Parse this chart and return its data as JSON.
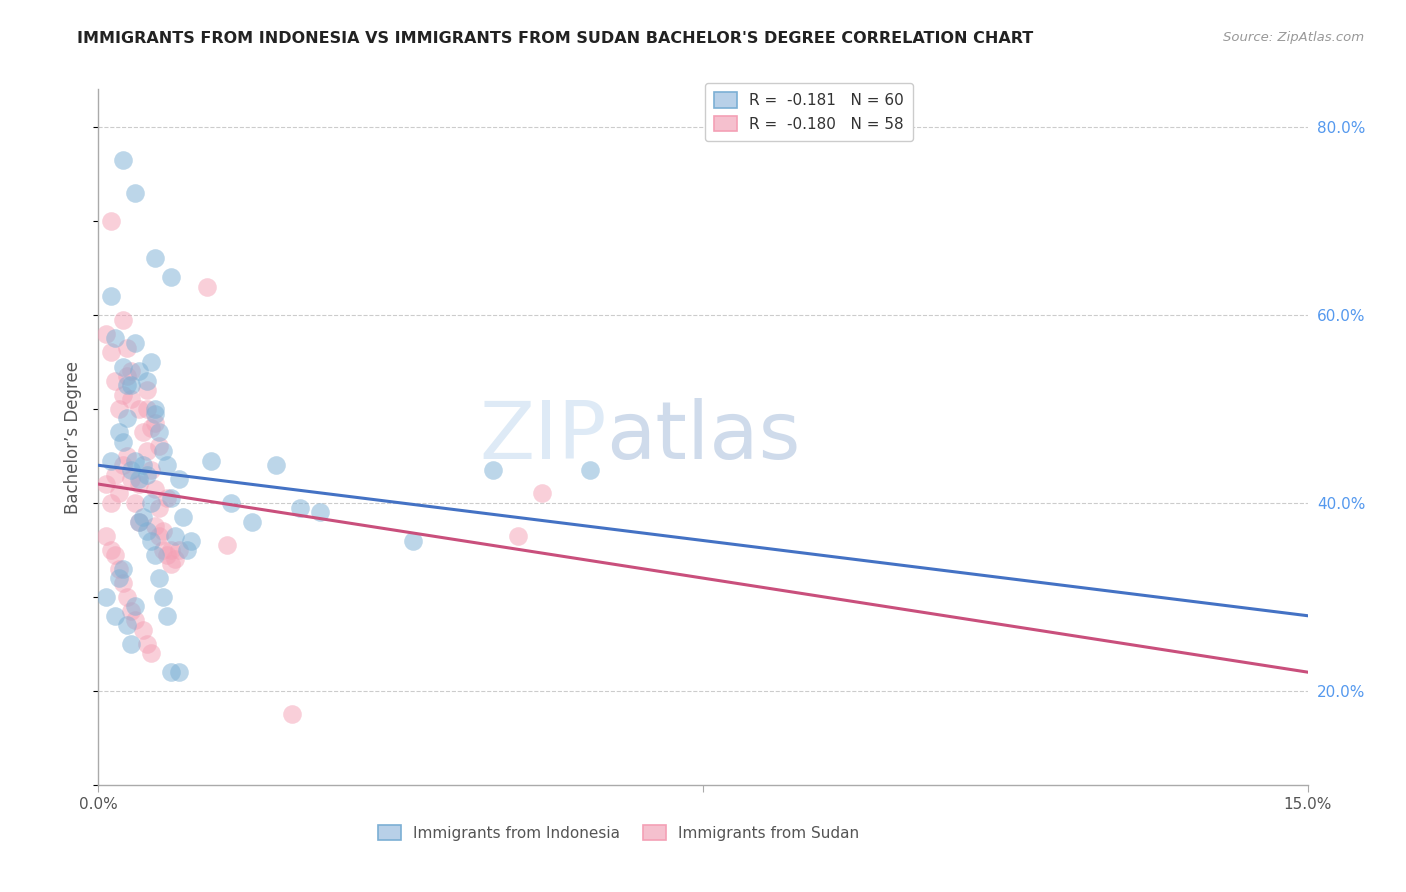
{
  "title": "IMMIGRANTS FROM INDONESIA VS IMMIGRANTS FROM SUDAN BACHELOR'S DEGREE CORRELATION CHART",
  "source": "Source: ZipAtlas.com",
  "xlim": [
    0.0,
    15.0
  ],
  "ylim": [
    10.0,
    84.0
  ],
  "ylabel": "Bachelor’s Degree",
  "blue_color": "#7bafd4",
  "pink_color": "#f4a0b5",
  "blue_line_color": "#4472c4",
  "pink_line_color": "#c94f7c",
  "blue_scatter": [
    [
      0.15,
      44.5
    ],
    [
      0.25,
      47.5
    ],
    [
      0.3,
      46.5
    ],
    [
      0.35,
      49.0
    ],
    [
      0.4,
      43.5
    ],
    [
      0.45,
      44.5
    ],
    [
      0.5,
      42.5
    ],
    [
      0.55,
      44.0
    ],
    [
      0.6,
      43.0
    ],
    [
      0.65,
      40.0
    ],
    [
      0.7,
      49.5
    ],
    [
      0.75,
      47.5
    ],
    [
      0.8,
      45.5
    ],
    [
      0.85,
      44.0
    ],
    [
      0.9,
      40.5
    ],
    [
      0.95,
      36.5
    ],
    [
      1.0,
      42.5
    ],
    [
      1.05,
      38.5
    ],
    [
      1.1,
      35.0
    ],
    [
      1.15,
      36.0
    ],
    [
      0.15,
      62.0
    ],
    [
      0.2,
      57.5
    ],
    [
      0.3,
      54.5
    ],
    [
      0.35,
      52.5
    ],
    [
      0.4,
      52.5
    ],
    [
      0.45,
      57.0
    ],
    [
      0.5,
      54.0
    ],
    [
      0.6,
      53.0
    ],
    [
      0.65,
      55.0
    ],
    [
      0.7,
      50.0
    ],
    [
      1.4,
      44.5
    ],
    [
      1.65,
      40.0
    ],
    [
      1.9,
      38.0
    ],
    [
      2.2,
      44.0
    ],
    [
      2.5,
      39.5
    ],
    [
      2.75,
      39.0
    ],
    [
      0.3,
      76.5
    ],
    [
      0.45,
      73.0
    ],
    [
      0.7,
      66.0
    ],
    [
      0.9,
      64.0
    ],
    [
      0.1,
      30.0
    ],
    [
      0.2,
      28.0
    ],
    [
      0.25,
      32.0
    ],
    [
      0.3,
      33.0
    ],
    [
      0.35,
      27.0
    ],
    [
      0.4,
      25.0
    ],
    [
      0.45,
      29.0
    ],
    [
      0.5,
      38.0
    ],
    [
      0.55,
      38.5
    ],
    [
      0.6,
      37.0
    ],
    [
      0.65,
      36.0
    ],
    [
      0.7,
      34.5
    ],
    [
      0.75,
      32.0
    ],
    [
      0.8,
      30.0
    ],
    [
      0.85,
      28.0
    ],
    [
      0.9,
      22.0
    ],
    [
      1.0,
      22.0
    ],
    [
      4.9,
      43.5
    ],
    [
      6.1,
      43.5
    ],
    [
      3.9,
      36.0
    ]
  ],
  "pink_scatter": [
    [
      0.1,
      42.0
    ],
    [
      0.15,
      40.0
    ],
    [
      0.2,
      43.0
    ],
    [
      0.25,
      41.0
    ],
    [
      0.3,
      44.0
    ],
    [
      0.35,
      45.0
    ],
    [
      0.4,
      42.5
    ],
    [
      0.45,
      40.0
    ],
    [
      0.5,
      42.0
    ],
    [
      0.5,
      38.0
    ],
    [
      0.55,
      47.5
    ],
    [
      0.6,
      45.5
    ],
    [
      0.65,
      43.5
    ],
    [
      0.7,
      41.5
    ],
    [
      0.75,
      39.5
    ],
    [
      0.8,
      37.0
    ],
    [
      0.85,
      40.5
    ],
    [
      0.9,
      35.0
    ],
    [
      0.95,
      34.0
    ],
    [
      1.0,
      35.0
    ],
    [
      0.1,
      58.0
    ],
    [
      0.15,
      56.0
    ],
    [
      0.2,
      53.0
    ],
    [
      0.25,
      50.0
    ],
    [
      0.3,
      51.5
    ],
    [
      0.35,
      53.5
    ],
    [
      0.4,
      51.0
    ],
    [
      0.5,
      50.0
    ],
    [
      0.6,
      52.0
    ],
    [
      0.65,
      48.0
    ],
    [
      0.15,
      70.0
    ],
    [
      1.35,
      63.0
    ],
    [
      0.3,
      59.5
    ],
    [
      0.35,
      56.5
    ],
    [
      0.4,
      54.0
    ],
    [
      0.6,
      50.0
    ],
    [
      0.7,
      48.5
    ],
    [
      0.75,
      46.0
    ],
    [
      0.1,
      36.5
    ],
    [
      0.15,
      35.0
    ],
    [
      0.2,
      34.5
    ],
    [
      0.25,
      33.0
    ],
    [
      0.3,
      31.5
    ],
    [
      0.35,
      30.0
    ],
    [
      0.4,
      28.5
    ],
    [
      0.45,
      27.5
    ],
    [
      0.55,
      26.5
    ],
    [
      0.6,
      25.0
    ],
    [
      0.65,
      24.0
    ],
    [
      0.7,
      37.5
    ],
    [
      0.75,
      36.5
    ],
    [
      0.8,
      35.0
    ],
    [
      0.85,
      34.5
    ],
    [
      0.9,
      33.5
    ],
    [
      1.6,
      35.5
    ],
    [
      2.4,
      17.5
    ],
    [
      5.5,
      41.0
    ],
    [
      5.2,
      36.5
    ]
  ],
  "blue_line_x": [
    0.0,
    15.0
  ],
  "blue_line_y": [
    44.0,
    28.0
  ],
  "pink_line_y": [
    42.0,
    22.0
  ],
  "yticks": [
    20,
    40,
    60,
    80
  ],
  "ytick_labels": [
    "20.0%",
    "40.0%",
    "60.0%",
    "80.0%"
  ],
  "xtick_positions": [
    0.0,
    7.5,
    15.0
  ],
  "xtick_labels": [
    "0.0%",
    "",
    "15.0%"
  ],
  "watermark_zip": "ZIP",
  "watermark_atlas": "atlas",
  "background_color": "#ffffff",
  "grid_color": "#cccccc",
  "legend1_label1": "R =  -0.181   N = 60",
  "legend1_label2": "R =  -0.180   N = 58",
  "legend2_label1": "Immigrants from Indonesia",
  "legend2_label2": "Immigrants from Sudan"
}
